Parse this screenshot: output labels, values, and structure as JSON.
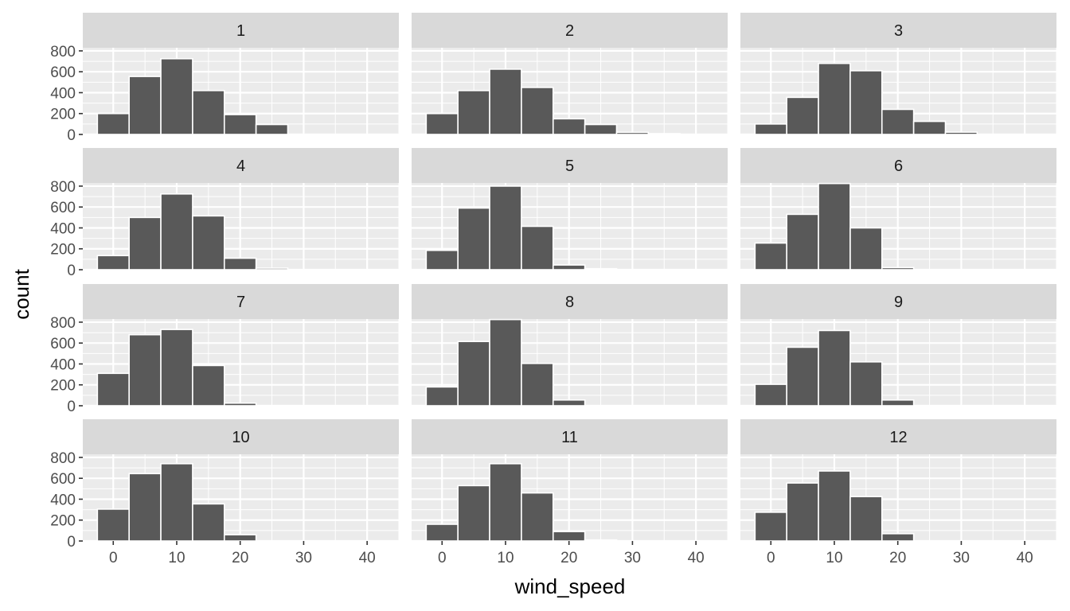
{
  "chart_data": {
    "type": "bar",
    "subtype": "histogram-facet",
    "title": "",
    "xlabel": "wind_speed",
    "ylabel": "count",
    "xlim": [
      -4.8,
      45
    ],
    "ylim": [
      0,
      830
    ],
    "x_ticks": [
      "0",
      "10",
      "20",
      "30",
      "40"
    ],
    "y_ticks": [
      "0",
      "200",
      "400",
      "600",
      "800"
    ],
    "bin_centers": [
      0,
      5,
      10,
      15,
      20,
      25,
      30,
      35,
      40
    ],
    "bin_width": 5,
    "grid": true,
    "legend": "none",
    "colors": {
      "bar_fill": "#595959",
      "bar_stroke": "#ffffff",
      "panel_bg": "#ebebeb",
      "grid": "#ffffff",
      "strip_bg": "#d9d9d9"
    },
    "panels": [
      {
        "label": "1",
        "values": [
          200,
          555,
          725,
          420,
          190,
          95,
          0,
          0,
          0
        ]
      },
      {
        "label": "2",
        "values": [
          200,
          420,
          625,
          450,
          150,
          95,
          20,
          8,
          0
        ]
      },
      {
        "label": "3",
        "values": [
          100,
          355,
          680,
          610,
          240,
          125,
          22,
          0,
          0
        ]
      },
      {
        "label": "4",
        "values": [
          135,
          500,
          725,
          515,
          110,
          15,
          0,
          0,
          0
        ]
      },
      {
        "label": "5",
        "values": [
          185,
          590,
          800,
          415,
          45,
          10,
          0,
          0,
          0
        ]
      },
      {
        "label": "6",
        "values": [
          255,
          530,
          825,
          400,
          20,
          0,
          0,
          0,
          0
        ]
      },
      {
        "label": "7",
        "values": [
          310,
          680,
          730,
          385,
          25,
          0,
          0,
          0,
          0
        ]
      },
      {
        "label": "8",
        "values": [
          180,
          615,
          825,
          405,
          55,
          0,
          0,
          0,
          0
        ]
      },
      {
        "label": "9",
        "values": [
          205,
          560,
          720,
          420,
          55,
          0,
          0,
          0,
          0
        ]
      },
      {
        "label": "10",
        "values": [
          305,
          645,
          740,
          355,
          60,
          0,
          0,
          0,
          0
        ]
      },
      {
        "label": "11",
        "values": [
          160,
          530,
          740,
          460,
          90,
          10,
          0,
          0,
          0
        ]
      },
      {
        "label": "12",
        "values": [
          275,
          555,
          670,
          425,
          70,
          0,
          0,
          0,
          0
        ]
      }
    ]
  }
}
